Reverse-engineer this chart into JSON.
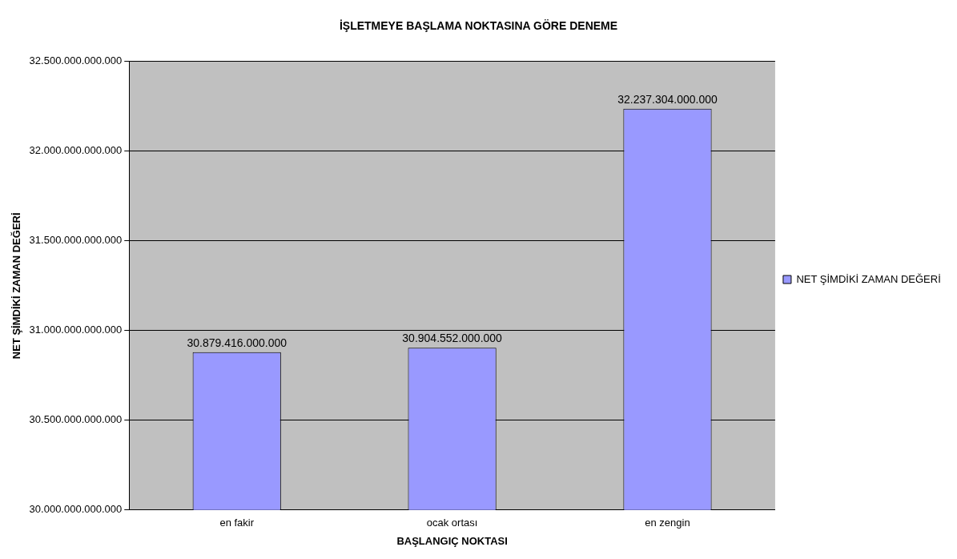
{
  "chart_data": {
    "type": "bar",
    "title": "İŞLETMEYE BAŞLAMA NOKTASINA GÖRE DENEME",
    "xlabel": "BAŞLANGIÇ NOKTASI",
    "ylabel": "NET ŞİMDİKİ ZAMAN DEĞERİ",
    "categories": [
      "en fakir",
      "ocak ortası",
      "en zengin"
    ],
    "series": [
      {
        "name": "NET ŞİMDİKİ ZAMAN DEĞERİ",
        "color": "#9999ff",
        "values": [
          30879416000000,
          30904552000000,
          32237304000000
        ],
        "value_labels": [
          "30.879.416.000.000",
          "30.904.552.000.000",
          "32.237.304.000.000"
        ]
      }
    ],
    "ylim": [
      30000000000000,
      32500000000000
    ],
    "yticks": [
      {
        "value": 30000000000000,
        "label": "30.000.000.000.000"
      },
      {
        "value": 30500000000000,
        "label": "30.500.000.000.000"
      },
      {
        "value": 31000000000000,
        "label": "31.000.000.000.000"
      },
      {
        "value": 31500000000000,
        "label": "31.500.000.000.000"
      },
      {
        "value": 32000000000000,
        "label": "32.000.000.000.000"
      },
      {
        "value": 32500000000000,
        "label": "32.500.000.000.000"
      }
    ],
    "grid": "y",
    "legend": "right"
  }
}
